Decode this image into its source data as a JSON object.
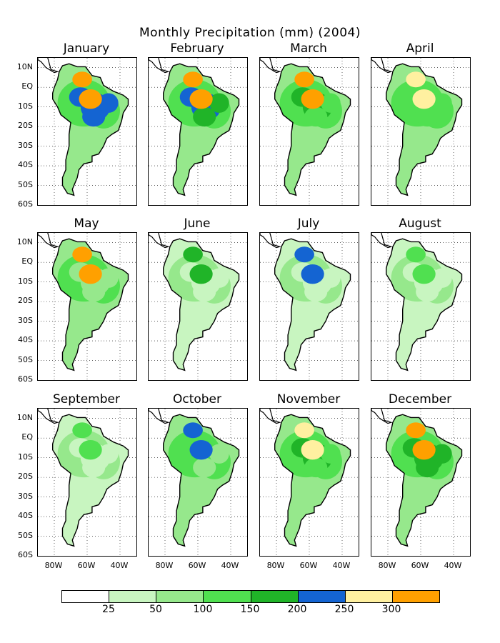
{
  "title": "Monthly Precipitation (mm) (2004)",
  "months": [
    "January",
    "February",
    "March",
    "April",
    "May",
    "June",
    "July",
    "August",
    "September",
    "October",
    "November",
    "December"
  ],
  "lat_labels": [
    "10N",
    "EQ",
    "10S",
    "20S",
    "30S",
    "40S",
    "50S",
    "60S"
  ],
  "lon_labels": [
    "80W",
    "60W",
    "40W"
  ],
  "legend": {
    "colors": [
      "#ffffff",
      "#c8f5c0",
      "#96e88c",
      "#50e050",
      "#20b428",
      "#1464d2",
      "#fff0a0",
      "#ffa000"
    ],
    "labels": [
      "25",
      "50",
      "100",
      "150",
      "200",
      "250",
      "300"
    ]
  },
  "precip_levels": {
    "January": [
      3,
      5,
      5,
      2,
      7
    ],
    "February": [
      3,
      5,
      4,
      2,
      7
    ],
    "March": [
      3,
      4,
      3,
      2,
      7
    ],
    "April": [
      3,
      3,
      3,
      2,
      6
    ],
    "May": [
      3,
      2,
      2,
      2,
      7
    ],
    "June": [
      2,
      1,
      1,
      1,
      4
    ],
    "July": [
      2,
      1,
      1,
      1,
      5
    ],
    "August": [
      2,
      1,
      1,
      1,
      3
    ],
    "September": [
      2,
      1,
      1,
      1,
      3
    ],
    "October": [
      3,
      3,
      2,
      2,
      5
    ],
    "November": [
      3,
      4,
      3,
      2,
      6
    ],
    "December": [
      3,
      4,
      4,
      2,
      7
    ]
  }
}
